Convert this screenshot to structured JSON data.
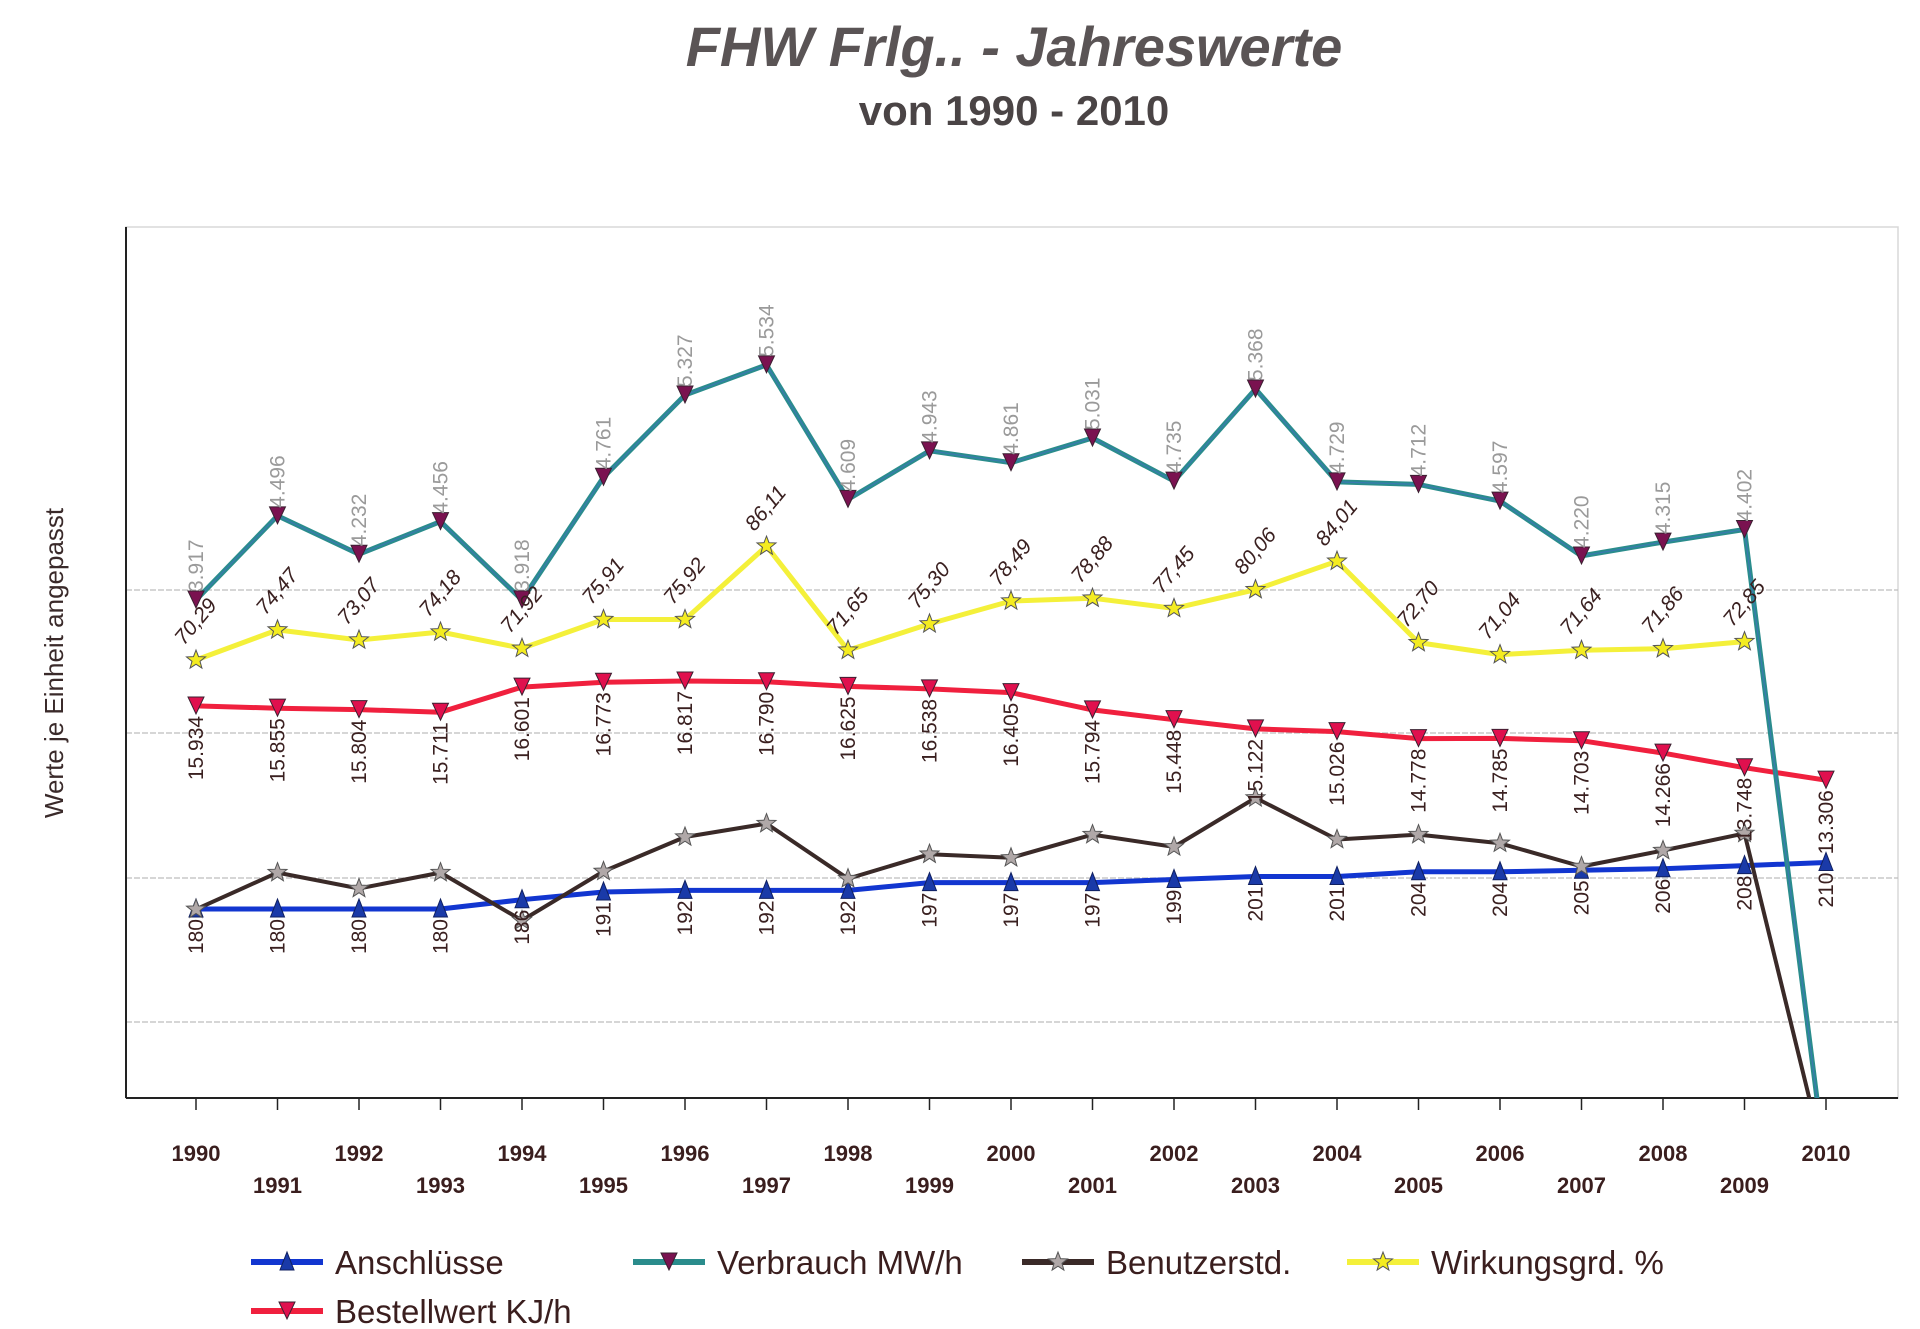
{
  "chart_data": {
    "type": "line",
    "title": "FHW Frlg.. - Jahreswerte",
    "subtitle": "von 1990 - 2010",
    "xlabel": "",
    "ylabel": "Werte je Einheit angepasst",
    "grid": true,
    "legend_position": "bottom",
    "x": [
      "1990",
      "1991",
      "1992",
      "1993",
      "1994",
      "1995",
      "1996",
      "1997",
      "1998",
      "1999",
      "2000",
      "2001",
      "2002",
      "2003",
      "2004",
      "2005",
      "2006",
      "2007",
      "2008",
      "2009",
      "2010"
    ],
    "series": [
      {
        "key": "verbrauch",
        "name": "Verbrauch MW/h",
        "color": "#2a8c8c",
        "marker_color": "#7a1250",
        "marker": "triangle-down",
        "values": [
          3.917,
          4.496,
          4.232,
          4.456,
          3.918,
          4.761,
          5.327,
          5.534,
          4.609,
          4.943,
          4.861,
          5.031,
          4.735,
          5.368,
          4.729,
          4.712,
          4.597,
          4.22,
          4.315,
          4.402,
          0
        ],
        "labels": [
          "3.917",
          "4.496",
          "4.232",
          "4.456",
          "3.918",
          "4.761",
          "5.327",
          "5.534",
          "4.609",
          "4.943",
          "4.861",
          "5.031",
          "4.735",
          "5.368",
          "4.729",
          "4.712",
          "4.597",
          "4.220",
          "4.315",
          "4.402",
          ""
        ]
      },
      {
        "key": "wirkungsgrad",
        "name": "Wirkungsgrd. %",
        "color": "#f4f03a",
        "marker_color": "#f4ec20",
        "marker": "star",
        "values": [
          70.29,
          74.47,
          73.07,
          74.18,
          71.92,
          75.91,
          75.92,
          86.11,
          71.65,
          75.3,
          78.49,
          78.88,
          77.45,
          80.06,
          84.01,
          72.7,
          71.04,
          71.64,
          71.86,
          72.85,
          null
        ],
        "labels": [
          "70,29",
          "74,47",
          "73,07",
          "74,18",
          "71,92",
          "75,91",
          "75,92",
          "86,11",
          "71,65",
          "75,30",
          "78,49",
          "78,88",
          "77,45",
          "80,06",
          "84,01",
          "72,70",
          "71,04",
          "71,64",
          "71,86",
          "72,85",
          ""
        ]
      },
      {
        "key": "bestellwert",
        "name": "Bestellwert KJ/h",
        "color": "#f0203e",
        "marker_color": "#e0104e",
        "marker": "triangle-down",
        "values": [
          15.934,
          15.855,
          15.804,
          15.711,
          16.601,
          16.773,
          16.817,
          16.79,
          16.625,
          16.538,
          16.405,
          15.794,
          15.448,
          15.122,
          15.026,
          14.778,
          14.785,
          14.703,
          14.266,
          13.748,
          13.306
        ],
        "labels": [
          "15.934",
          "15.855",
          "15.804",
          "15.711",
          "16.601",
          "16.773",
          "16.817",
          "16.790",
          "16.625",
          "16.538",
          "16.405",
          "15.794",
          "15.448",
          "15.122",
          "15.026",
          "14.778",
          "14.785",
          "14.703",
          "14.266",
          "13.748",
          "13.306"
        ]
      },
      {
        "key": "benutzerstd",
        "name": "Benutzerstd.",
        "color": "#3a2a28",
        "marker_color": "#b0a8a8",
        "marker": "star",
        "values": [
          1780,
          2034,
          1924,
          2034,
          1703,
          2042,
          2280,
          2373,
          1992,
          2161,
          2136,
          2297,
          2212,
          2551,
          2263,
          2297,
          2237,
          2076,
          2187,
          2305,
          0
        ],
        "labels": []
      },
      {
        "key": "anschluesse",
        "name": "Anschlüsse",
        "color": "#1236d0",
        "marker_color": "#1a3aa8",
        "marker": "triangle-up",
        "values": [
          180,
          180,
          180,
          180,
          186,
          191,
          192,
          192,
          192,
          197,
          197,
          197,
          199,
          201,
          201,
          204,
          204,
          205,
          206,
          208,
          210
        ],
        "labels": [
          "180",
          "180",
          "180",
          "180",
          "186",
          "191",
          "192",
          "192",
          "192",
          "197",
          "197",
          "197",
          "199",
          "201",
          "201",
          "204",
          "204",
          "205",
          "206",
          "208",
          "210"
        ]
      }
    ],
    "legend": [
      {
        "key": "anschluesse",
        "label": "Anschlüsse"
      },
      {
        "key": "verbrauch",
        "label": "Verbrauch MW/h"
      },
      {
        "key": "benutzerstd",
        "label": "Benutzerstd."
      },
      {
        "key": "wirkungsgrad",
        "label": "Wirkungsgrd. %"
      },
      {
        "key": "bestellwert",
        "label": "Bestellwert KJ/h"
      }
    ]
  }
}
